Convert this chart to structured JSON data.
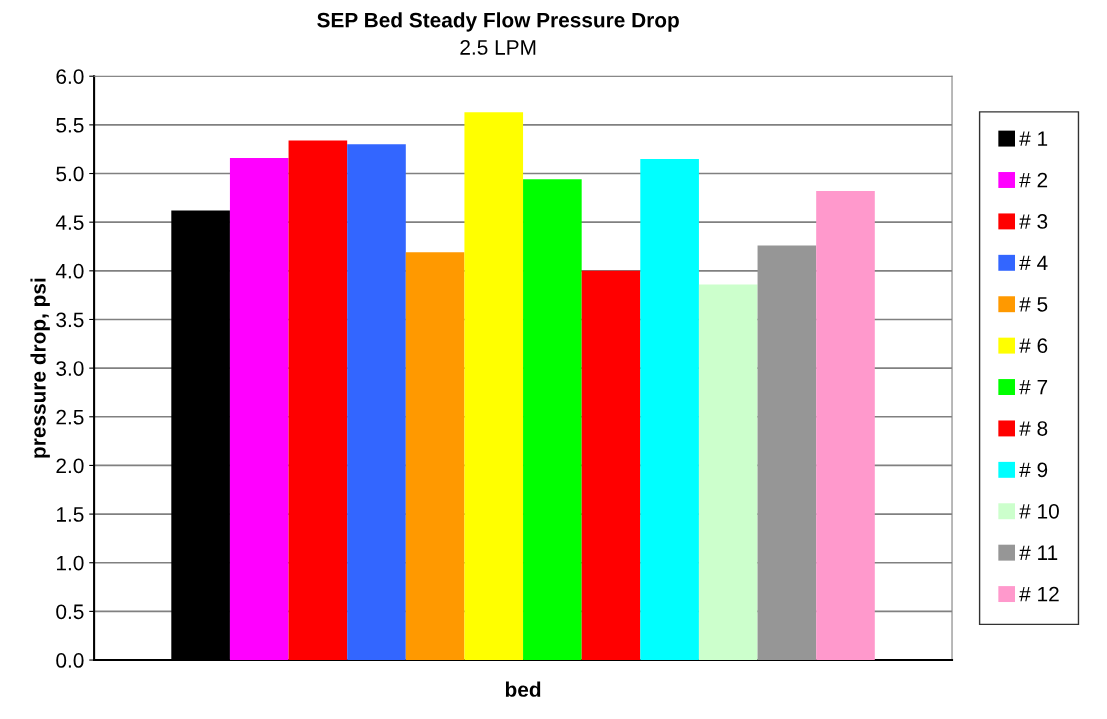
{
  "chart_data": {
    "type": "bar",
    "title": "SEP Bed Steady Flow Pressure Drop",
    "subtitle": "2.5 LPM",
    "xlabel": "bed",
    "ylabel": "pressure drop, psi",
    "categories": [
      null
    ],
    "series": [
      {
        "name": "# 1",
        "color": "#000000",
        "values": [
          4.62
        ]
      },
      {
        "name": "# 2",
        "color": "#ff00ff",
        "values": [
          5.16
        ]
      },
      {
        "name": "# 3",
        "color": "#ff0000",
        "values": [
          5.34
        ]
      },
      {
        "name": "# 4",
        "color": "#3366ff",
        "values": [
          5.3
        ]
      },
      {
        "name": "# 5",
        "color": "#ff9900",
        "values": [
          4.19
        ]
      },
      {
        "name": "# 6",
        "color": "#ffff00",
        "values": [
          5.63
        ]
      },
      {
        "name": "# 7",
        "color": "#00ff00",
        "values": [
          4.94
        ]
      },
      {
        "name": "# 8",
        "color": "#ff0000",
        "values": [
          4.0
        ]
      },
      {
        "name": "# 9",
        "color": "#00ffff",
        "values": [
          5.15
        ]
      },
      {
        "name": "# 10",
        "color": "#ccffcc",
        "values": [
          3.86
        ]
      },
      {
        "name": "# 11",
        "color": "#969696",
        "values": [
          4.26
        ]
      },
      {
        "name": "# 12",
        "color": "#ff99cc",
        "values": [
          4.82
        ]
      }
    ],
    "ylim": [
      0,
      6
    ],
    "yticks": [
      {
        "value": 0,
        "label": "0.0"
      },
      {
        "value": 0.5,
        "label": "0.5"
      },
      {
        "value": 1,
        "label": "1.0"
      },
      {
        "value": 1.5,
        "label": "1.5"
      },
      {
        "value": 2,
        "label": "2.0"
      },
      {
        "value": 2.5,
        "label": "2.5"
      },
      {
        "value": 3,
        "label": "3.0"
      },
      {
        "value": 3.5,
        "label": "3.5"
      },
      {
        "value": 4,
        "label": "4.0"
      },
      {
        "value": 4.5,
        "label": "4.5"
      },
      {
        "value": 5,
        "label": "5.0"
      },
      {
        "value": 5.5,
        "label": "5.5"
      },
      {
        "value": 6,
        "label": "6.0"
      }
    ],
    "grid": "y",
    "legend": "right"
  }
}
